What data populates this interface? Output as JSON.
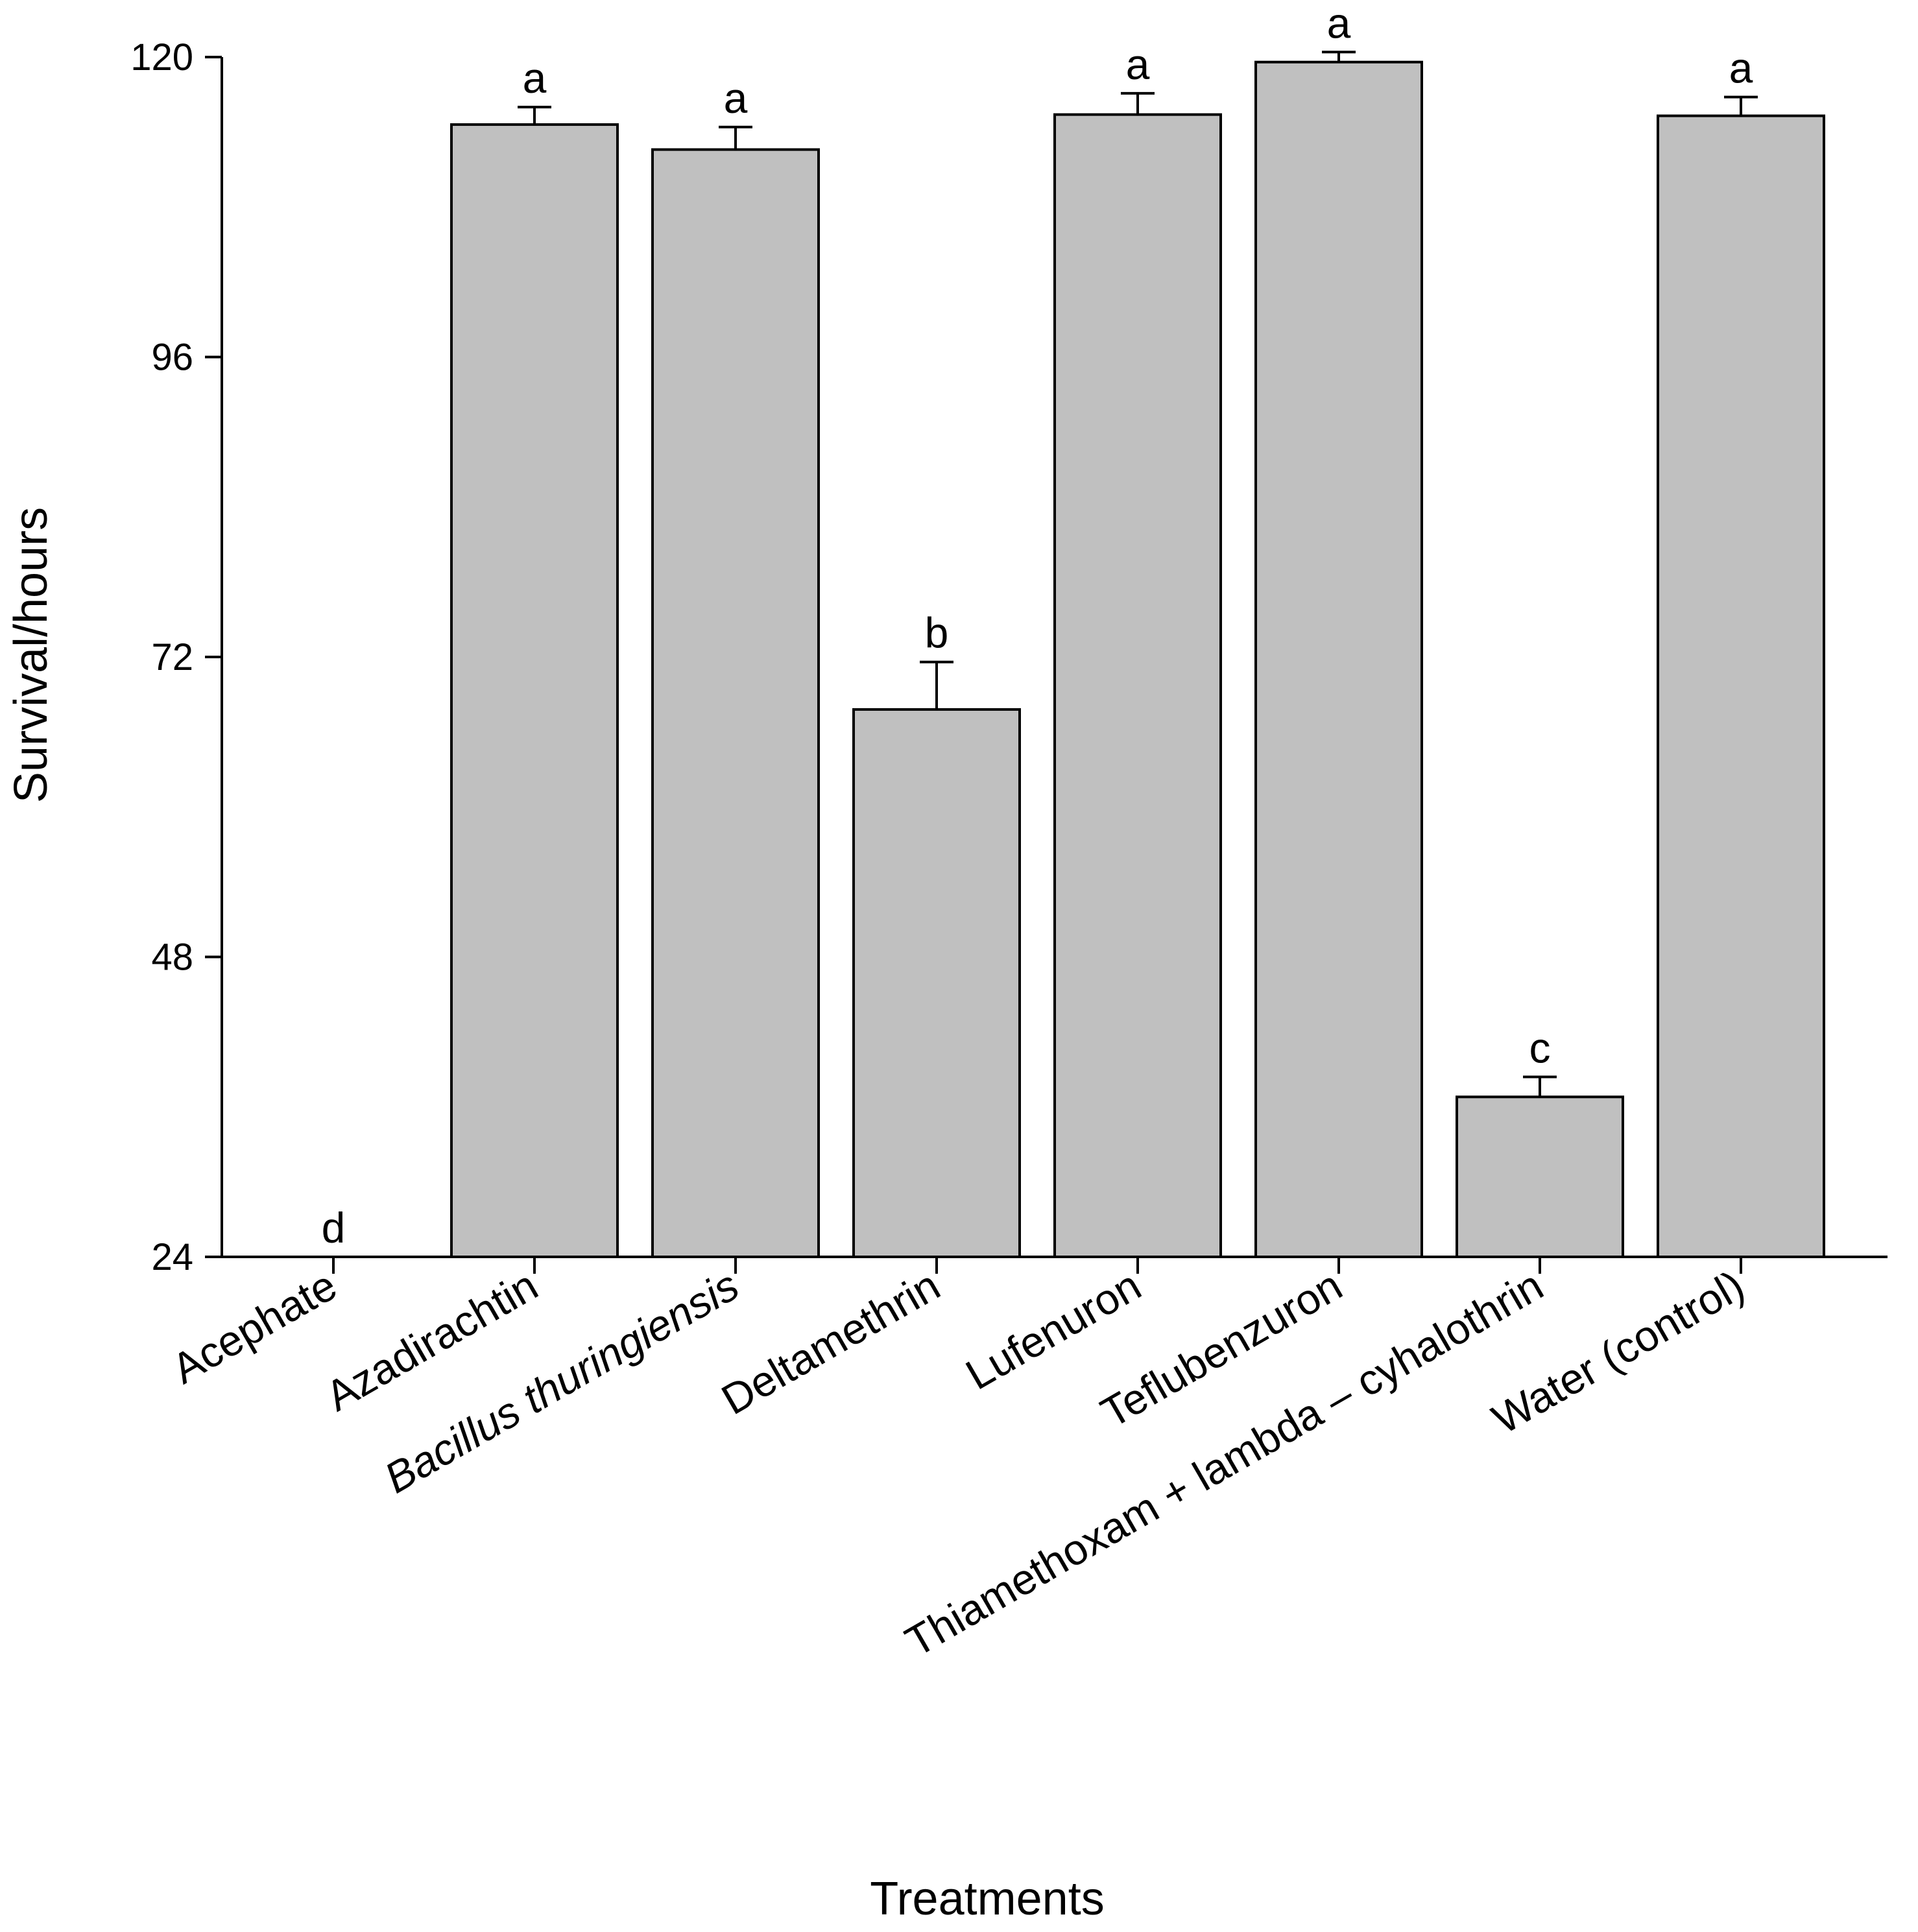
{
  "chart_data": {
    "type": "bar",
    "title": "",
    "xlabel": "Treatments",
    "ylabel": "Survival/hours",
    "ylim": [
      24,
      120
    ],
    "yticks": [
      24,
      48,
      72,
      96,
      120
    ],
    "grid": false,
    "categories": [
      "Acephate",
      "Azadirachtin",
      "Bacillus thuringiensis",
      "Deltamethrin",
      "Lufenuron",
      "Teflubenzuron",
      "Thiamethoxam + lambda – cyhalothrin",
      "Water (control)"
    ],
    "italic_categories": [
      false,
      false,
      true,
      false,
      false,
      false,
      false,
      false
    ],
    "values": [
      24,
      114.6,
      112.6,
      67.8,
      115.4,
      119.6,
      36.8,
      115.3
    ],
    "errors": [
      0,
      1.4,
      1.8,
      3.8,
      1.7,
      0.8,
      1.6,
      1.5
    ],
    "significance": [
      "d",
      "a",
      "a",
      "b",
      "a",
      "a",
      "c",
      "a"
    ],
    "bar_color": "#c0c0c0",
    "edge_color": "#000000"
  }
}
